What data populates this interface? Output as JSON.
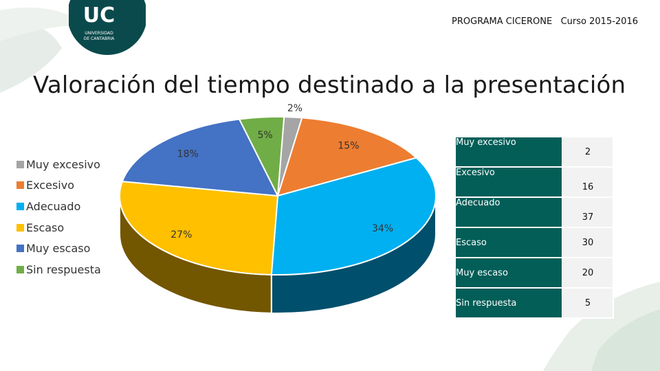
{
  "header": {
    "program": "PROGRAMA CICERONE   Curso 2015-2016",
    "logo_text": "UC",
    "logo_subtext_1": "UNIVERSIDAD",
    "logo_subtext_2": "DE CANTABRIA"
  },
  "title": "Valoración del tiempo destinado a la presentación",
  "colors": {
    "logo_bg": "#0b4a4c",
    "table_header": "#035e58",
    "table_value_bg": "#f2f2f2"
  },
  "chart_data": {
    "type": "pie",
    "categories": [
      "Muy excesivo",
      "Excesivo",
      "Adecuado",
      "Escaso",
      "Muy escaso",
      "Sin respuesta"
    ],
    "values": [
      2,
      16,
      37,
      30,
      20,
      5
    ],
    "labels": [
      "2%",
      "15%",
      "34%",
      "27%",
      "18%",
      "5%"
    ],
    "colors": [
      "#a5a5a5",
      "#ed7d31",
      "#00b0f0",
      "#ffc000",
      "#4472c4",
      "#70ad47"
    ],
    "legend_position": "left"
  },
  "table": {
    "rows": [
      {
        "label": "Muy excesivo",
        "value": "2"
      },
      {
        "label": "Excesivo",
        "value": "16"
      },
      {
        "label": "Adecuado",
        "value": "37"
      },
      {
        "label": "Escaso",
        "value": "30"
      },
      {
        "label": "Muy escaso",
        "value": "20"
      },
      {
        "label": "Sin respuesta",
        "value": "5"
      }
    ]
  }
}
